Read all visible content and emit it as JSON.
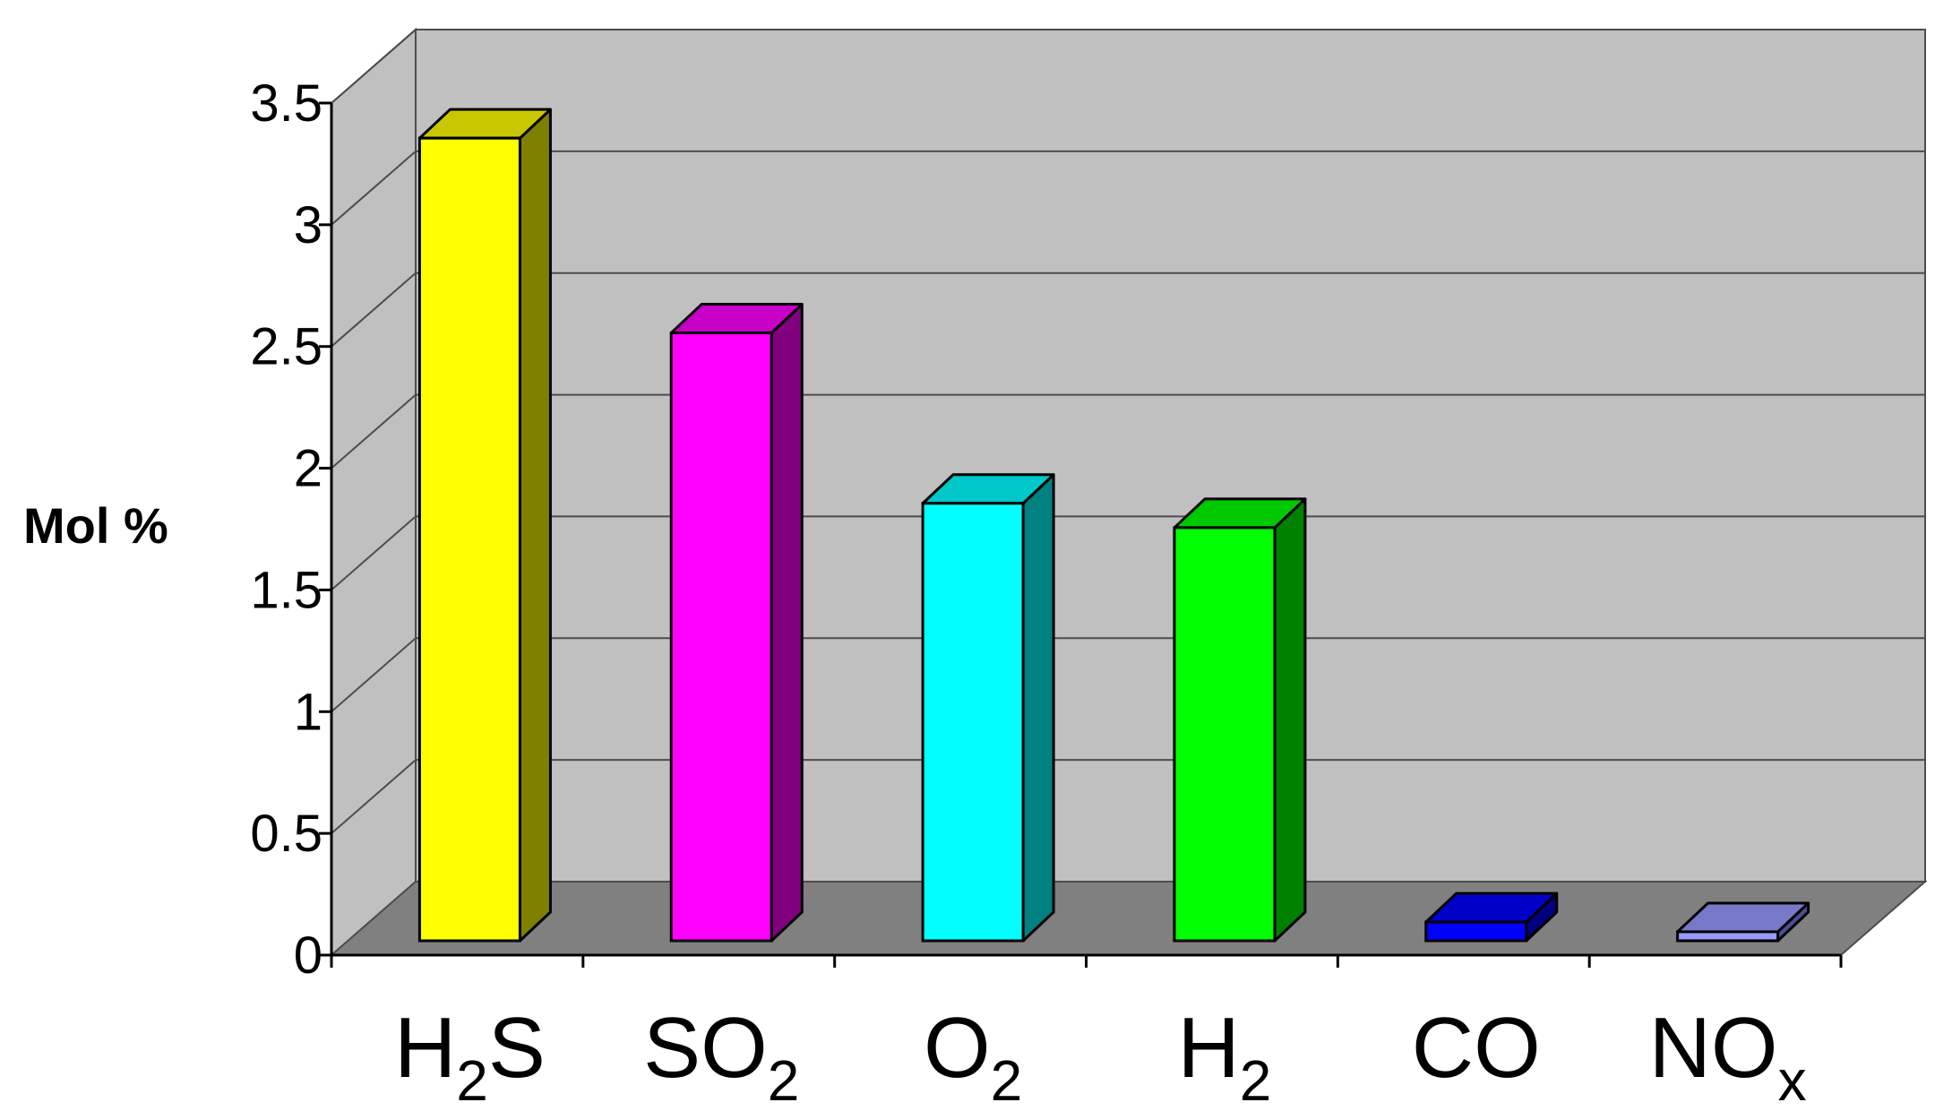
{
  "chart_data": {
    "type": "bar",
    "style": "3d-column",
    "ylabel": "Mol %",
    "xlabel": "",
    "ylim": [
      0,
      3.5
    ],
    "y_ticks": [
      "0",
      "0.5",
      "1",
      "1.5",
      "2",
      "2.5",
      "3",
      "3.5"
    ],
    "grid": true,
    "legend": "none",
    "categories": [
      {
        "base": "H",
        "sub": "2",
        "tail": "S"
      },
      {
        "base": "SO",
        "sub": "2",
        "tail": ""
      },
      {
        "base": "O",
        "sub": "2",
        "tail": ""
      },
      {
        "base": "H",
        "sub": "2",
        "tail": ""
      },
      {
        "base": "CO",
        "sub": "",
        "tail": ""
      },
      {
        "base": "NO",
        "sub": "x",
        "tail": ""
      }
    ],
    "values": [
      3.4,
      2.6,
      1.9,
      1.8,
      0.18,
      0.14
    ],
    "colors": {
      "front": [
        "#ffff00",
        "#ff00ff",
        "#00ffff",
        "#00ff00",
        "#0000ff",
        "#9999ff"
      ],
      "side": [
        "#808000",
        "#800080",
        "#008080",
        "#008000",
        "#000080",
        "#4d4d99"
      ],
      "top": [
        "#c8c800",
        "#c800c8",
        "#00c8c8",
        "#00c800",
        "#0000c8",
        "#7878c8"
      ],
      "wall": "#c0c0c0",
      "floor": "#808080"
    }
  }
}
